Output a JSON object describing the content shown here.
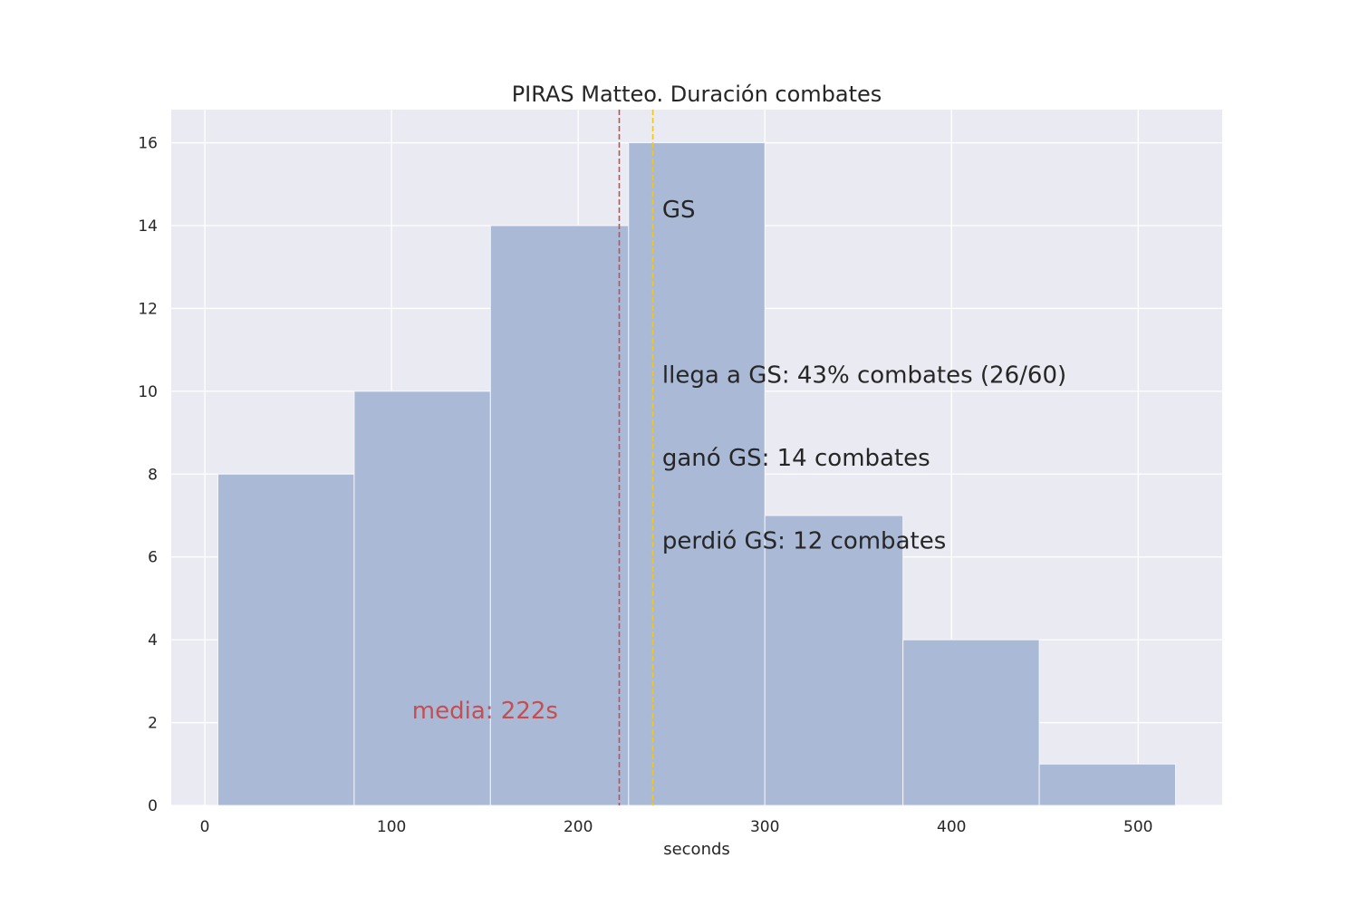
{
  "chart_data": {
    "type": "bar",
    "title": "PIRAS Matteo. Duración combates",
    "xlabel": "seconds",
    "ylabel": "",
    "xlim": [
      -18,
      545
    ],
    "ylim": [
      0,
      16.8
    ],
    "xticks": [
      0,
      100,
      200,
      300,
      400,
      500
    ],
    "yticks": [
      0,
      2,
      4,
      6,
      8,
      10,
      12,
      14,
      16
    ],
    "grid": true,
    "bins": [
      {
        "start": 7,
        "end": 80,
        "value": 8
      },
      {
        "start": 80,
        "end": 153,
        "value": 10
      },
      {
        "start": 153,
        "end": 227,
        "value": 14
      },
      {
        "start": 227,
        "end": 300,
        "value": 16
      },
      {
        "start": 300,
        "end": 374,
        "value": 7
      },
      {
        "start": 374,
        "end": 447,
        "value": 4
      },
      {
        "start": 447,
        "end": 520,
        "value": 1
      }
    ],
    "bar_color": "#a9b9d6",
    "background_color": "#eaeaf2",
    "reference_lines": [
      {
        "x": 222,
        "color": "#c44e52",
        "style": "dashed"
      },
      {
        "x": 240,
        "color": "#f5c518",
        "style": "dashed"
      }
    ],
    "annotations": [
      {
        "text": "media: 222s",
        "x": 111,
        "y": 2.1,
        "color": "#c44e52"
      },
      {
        "text": "GS",
        "x": 245,
        "y": 14.2,
        "color": "#262626"
      },
      {
        "text": "llega a GS: 43% combates (26/60)",
        "x": 245,
        "y": 10.2,
        "color": "#262626"
      },
      {
        "text": "ganó GS: 14 combates",
        "x": 245,
        "y": 8.2,
        "color": "#262626"
      },
      {
        "text": "perdió GS: 12 combates",
        "x": 245,
        "y": 6.2,
        "color": "#262626"
      }
    ]
  }
}
